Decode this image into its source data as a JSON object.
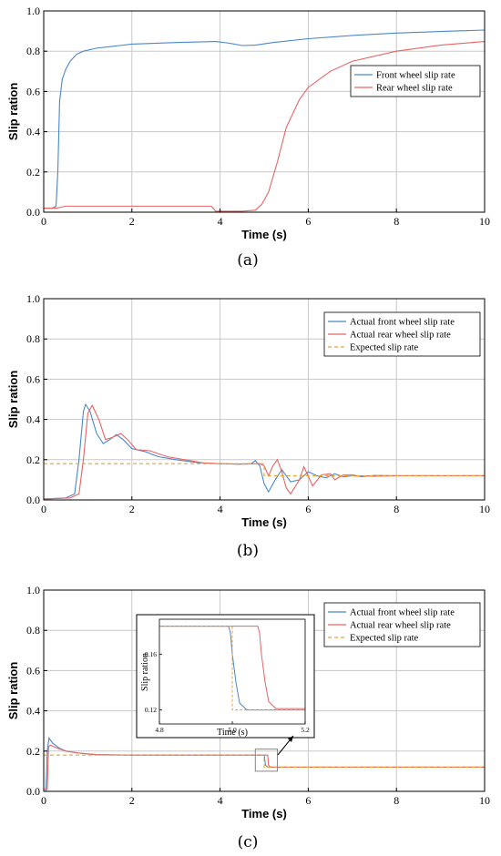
{
  "figure_labels": [
    "(a)",
    "(b)",
    "(c)"
  ],
  "colors": {
    "front": "#4a88c8",
    "rear": "#e86464",
    "expected": "#f0a030"
  },
  "chart_data": [
    {
      "type": "line",
      "xlabel": "Time (s)",
      "ylabel": "Slip ration",
      "xlim": [
        0,
        10
      ],
      "ylim": [
        0,
        1
      ],
      "xticks": [
        0,
        2,
        4,
        6,
        8,
        10
      ],
      "yticks": [
        0.0,
        0.2,
        0.4,
        0.6,
        0.8,
        1.0
      ],
      "grid": true,
      "legend_position": "upper-right",
      "series": [
        {
          "name": "Front wheel slip rate",
          "color": "#4a88c8",
          "dash": "",
          "points": [
            [
              0,
              0.02
            ],
            [
              0.2,
              0.02
            ],
            [
              0.28,
              0.03
            ],
            [
              0.32,
              0.2
            ],
            [
              0.36,
              0.55
            ],
            [
              0.42,
              0.66
            ],
            [
              0.5,
              0.71
            ],
            [
              0.6,
              0.75
            ],
            [
              0.75,
              0.785
            ],
            [
              0.9,
              0.8
            ],
            [
              1.2,
              0.815
            ],
            [
              1.6,
              0.825
            ],
            [
              2.0,
              0.835
            ],
            [
              3.0,
              0.843
            ],
            [
              3.9,
              0.848
            ],
            [
              4.2,
              0.84
            ],
            [
              4.5,
              0.828
            ],
            [
              4.8,
              0.83
            ],
            [
              5.2,
              0.843
            ],
            [
              6.0,
              0.862
            ],
            [
              7.0,
              0.878
            ],
            [
              8.0,
              0.89
            ],
            [
              9.0,
              0.898
            ],
            [
              10.0,
              0.905
            ]
          ]
        },
        {
          "name": "Rear wheel slip rate",
          "color": "#e86464",
          "dash": "",
          "points": [
            [
              0,
              0.02
            ],
            [
              0.3,
              0.02
            ],
            [
              0.5,
              0.03
            ],
            [
              1.0,
              0.03
            ],
            [
              2.0,
              0.03
            ],
            [
              3.0,
              0.03
            ],
            [
              3.8,
              0.03
            ],
            [
              3.9,
              0.005
            ],
            [
              4.5,
              0.005
            ],
            [
              4.8,
              0.01
            ],
            [
              4.95,
              0.04
            ],
            [
              5.1,
              0.1
            ],
            [
              5.3,
              0.25
            ],
            [
              5.5,
              0.42
            ],
            [
              5.8,
              0.56
            ],
            [
              6.0,
              0.62
            ],
            [
              6.5,
              0.7
            ],
            [
              7.0,
              0.75
            ],
            [
              8.0,
              0.8
            ],
            [
              9.0,
              0.83
            ],
            [
              10.0,
              0.848
            ]
          ]
        }
      ]
    },
    {
      "type": "line",
      "xlabel": "Time (s)",
      "ylabel": "Slip ration",
      "xlim": [
        0,
        10
      ],
      "ylim": [
        0,
        1
      ],
      "xticks": [
        0,
        2,
        4,
        6,
        8,
        10
      ],
      "yticks": [
        0.0,
        0.2,
        0.4,
        0.6,
        0.8,
        1.0
      ],
      "grid": true,
      "legend_position": "upper-right",
      "series": [
        {
          "name": "Actual front wheel slip rate",
          "color": "#4a88c8",
          "dash": "",
          "points": [
            [
              0,
              0.005
            ],
            [
              0.5,
              0.01
            ],
            [
              0.7,
              0.03
            ],
            [
              0.8,
              0.2
            ],
            [
              0.9,
              0.44
            ],
            [
              0.95,
              0.475
            ],
            [
              1.05,
              0.44
            ],
            [
              1.2,
              0.33
            ],
            [
              1.35,
              0.28
            ],
            [
              1.5,
              0.3
            ],
            [
              1.65,
              0.325
            ],
            [
              1.8,
              0.3
            ],
            [
              2.0,
              0.255
            ],
            [
              2.3,
              0.24
            ],
            [
              2.6,
              0.215
            ],
            [
              3.0,
              0.2
            ],
            [
              3.5,
              0.185
            ],
            [
              4.0,
              0.18
            ],
            [
              4.4,
              0.178
            ],
            [
              4.7,
              0.18
            ],
            [
              4.8,
              0.195
            ],
            [
              4.9,
              0.17
            ],
            [
              5.0,
              0.08
            ],
            [
              5.1,
              0.04
            ],
            [
              5.25,
              0.1
            ],
            [
              5.4,
              0.15
            ],
            [
              5.6,
              0.09
            ],
            [
              5.8,
              0.1
            ],
            [
              6.0,
              0.14
            ],
            [
              6.2,
              0.12
            ],
            [
              6.4,
              0.11
            ],
            [
              6.6,
              0.13
            ],
            [
              6.8,
              0.115
            ],
            [
              7.0,
              0.12
            ],
            [
              7.5,
              0.118
            ],
            [
              8.0,
              0.12
            ],
            [
              10.0,
              0.12
            ]
          ]
        },
        {
          "name": "Actual rear wheel slip rate",
          "color": "#e86464",
          "dash": "",
          "points": [
            [
              0,
              0.005
            ],
            [
              0.6,
              0.01
            ],
            [
              0.8,
              0.03
            ],
            [
              0.9,
              0.2
            ],
            [
              1.0,
              0.43
            ],
            [
              1.1,
              0.47
            ],
            [
              1.25,
              0.4
            ],
            [
              1.4,
              0.3
            ],
            [
              1.55,
              0.31
            ],
            [
              1.75,
              0.33
            ],
            [
              1.9,
              0.3
            ],
            [
              2.1,
              0.25
            ],
            [
              2.4,
              0.245
            ],
            [
              2.8,
              0.215
            ],
            [
              3.2,
              0.2
            ],
            [
              3.6,
              0.185
            ],
            [
              4.0,
              0.18
            ],
            [
              4.5,
              0.178
            ],
            [
              4.9,
              0.18
            ],
            [
              5.0,
              0.17
            ],
            [
              5.1,
              0.12
            ],
            [
              5.2,
              0.17
            ],
            [
              5.3,
              0.2
            ],
            [
              5.4,
              0.14
            ],
            [
              5.5,
              0.06
            ],
            [
              5.6,
              0.03
            ],
            [
              5.8,
              0.1
            ],
            [
              5.9,
              0.165
            ],
            [
              6.1,
              0.07
            ],
            [
              6.3,
              0.125
            ],
            [
              6.5,
              0.13
            ],
            [
              6.6,
              0.1
            ],
            [
              6.8,
              0.125
            ],
            [
              7.0,
              0.125
            ],
            [
              7.2,
              0.115
            ],
            [
              7.5,
              0.122
            ],
            [
              8.0,
              0.12
            ],
            [
              10.0,
              0.12
            ]
          ]
        },
        {
          "name": "Expected slip rate",
          "color": "#f0a030",
          "dash": "4 3",
          "points": [
            [
              0,
              0.18
            ],
            [
              5.0,
              0.18
            ],
            [
              5.0,
              0.12
            ],
            [
              10.0,
              0.12
            ]
          ]
        }
      ]
    },
    {
      "type": "line",
      "xlabel": "Time (s)",
      "ylabel": "Slip ration",
      "xlim": [
        0,
        10
      ],
      "ylim": [
        0,
        1
      ],
      "xticks": [
        0,
        2,
        4,
        6,
        8,
        10
      ],
      "yticks": [
        0.0,
        0.2,
        0.4,
        0.6,
        0.8,
        1.0
      ],
      "grid": true,
      "legend_position": "upper-right",
      "series": [
        {
          "name": "Actual front wheel slip rate",
          "color": "#4a88c8",
          "dash": "",
          "points": [
            [
              0,
              0.0
            ],
            [
              0.05,
              0.0
            ],
            [
              0.08,
              0.2
            ],
            [
              0.12,
              0.265
            ],
            [
              0.2,
              0.24
            ],
            [
              0.35,
              0.215
            ],
            [
              0.5,
              0.2
            ],
            [
              0.8,
              0.19
            ],
            [
              1.2,
              0.183
            ],
            [
              2.0,
              0.18
            ],
            [
              3.0,
              0.18
            ],
            [
              4.0,
              0.18
            ],
            [
              5.0,
              0.18
            ],
            [
              5.03,
              0.13
            ],
            [
              5.08,
              0.12
            ],
            [
              10.0,
              0.12
            ]
          ]
        },
        {
          "name": "Actual rear wheel slip rate",
          "color": "#e86464",
          "dash": "",
          "points": [
            [
              0,
              0.01
            ],
            [
              0.08,
              0.01
            ],
            [
              0.11,
              0.22
            ],
            [
              0.15,
              0.23
            ],
            [
              0.3,
              0.215
            ],
            [
              0.5,
              0.2
            ],
            [
              0.8,
              0.19
            ],
            [
              1.2,
              0.182
            ],
            [
              2.0,
              0.18
            ],
            [
              3.0,
              0.18
            ],
            [
              4.0,
              0.18
            ],
            [
              5.08,
              0.18
            ],
            [
              5.1,
              0.13
            ],
            [
              5.14,
              0.12
            ],
            [
              10.0,
              0.12
            ]
          ]
        },
        {
          "name": "Expected slip rate",
          "color": "#f0a030",
          "dash": "4 3",
          "points": [
            [
              0,
              0.18
            ],
            [
              5.0,
              0.18
            ],
            [
              5.0,
              0.12
            ],
            [
              10.0,
              0.12
            ]
          ]
        }
      ],
      "inset": {
        "xlabel": "Time (s)",
        "ylabel": "Slip ration",
        "xlim": [
          4.8,
          5.2
        ],
        "ylim": [
          0.11,
          0.185
        ],
        "xticks": [
          4.8,
          5.0,
          5.2
        ],
        "xtick_labels": [
          "4.8",
          "5.0",
          "5.2"
        ],
        "yticks": [
          0.12,
          0.16
        ],
        "ytick_labels": [
          "0.12",
          "0.16"
        ],
        "series": [
          {
            "color": "#4a88c8",
            "dash": "",
            "points": [
              [
                4.8,
                0.18
              ],
              [
                4.99,
                0.18
              ],
              [
                4.995,
                0.175
              ],
              [
                5.0,
                0.16
              ],
              [
                5.01,
                0.14
              ],
              [
                5.02,
                0.125
              ],
              [
                5.04,
                0.12
              ],
              [
                5.2,
                0.12
              ]
            ]
          },
          {
            "color": "#e86464",
            "dash": "",
            "points": [
              [
                4.8,
                0.18
              ],
              [
                5.07,
                0.18
              ],
              [
                5.075,
                0.175
              ],
              [
                5.08,
                0.16
              ],
              [
                5.09,
                0.14
              ],
              [
                5.1,
                0.126
              ],
              [
                5.12,
                0.121
              ],
              [
                5.2,
                0.121
              ]
            ]
          },
          {
            "color": "#f0a030",
            "dash": "3 2",
            "points": [
              [
                4.8,
                0.18
              ],
              [
                5.0,
                0.18
              ],
              [
                5.0,
                0.12
              ],
              [
                5.2,
                0.12
              ]
            ]
          }
        ]
      }
    }
  ]
}
